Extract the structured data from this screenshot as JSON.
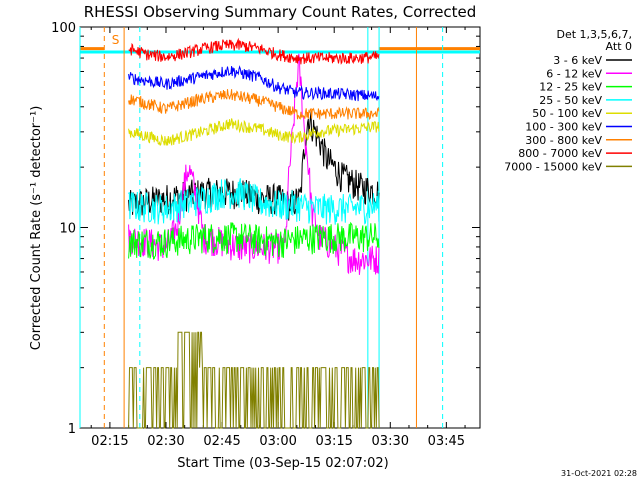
{
  "chart_data": {
    "type": "line",
    "title": "RHESSI Observing Summary Count Rates, Corrected",
    "xlabel": "Start Time (03-Sep-15 02:07:02)",
    "ylabel": "Corrected Count Rate (s⁻¹ detector⁻¹)",
    "yscale": "log",
    "ylim": [
      1,
      100
    ],
    "xlim": [
      7,
      114
    ],
    "x_ticks": [
      {
        "v": 15,
        "label": "02:15"
      },
      {
        "v": 30,
        "label": "02:30"
      },
      {
        "v": 45,
        "label": "02:45"
      },
      {
        "v": 60,
        "label": "03:00"
      },
      {
        "v": 75,
        "label": "03:15"
      },
      {
        "v": 90,
        "label": "03:30"
      },
      {
        "v": 105,
        "label": "03:45"
      }
    ],
    "y_ticks": [
      {
        "v": 1,
        "label": "1"
      },
      {
        "v": 10,
        "label": "10"
      },
      {
        "v": 100,
        "label": "100"
      }
    ],
    "legend_header": [
      "Det 1,3,5,6,7,",
      "Att 0"
    ],
    "legend_position": "right",
    "flag_label": "S",
    "footer": "31-Oct-2021 02:28",
    "series": [
      {
        "name": "3 - 6 keV",
        "color": "#000000",
        "x": [
          20,
          30,
          40,
          50,
          55,
          60,
          63,
          66,
          68,
          70,
          73,
          77,
          82,
          87
        ],
        "y": [
          13,
          14,
          15,
          15,
          14,
          14,
          13,
          14,
          35,
          30,
          22,
          18,
          16,
          15
        ]
      },
      {
        "name": "6 - 12 keV",
        "color": "#ff00ff",
        "x": [
          20,
          30,
          33,
          36,
          40,
          50,
          58,
          62,
          64,
          65.5,
          67,
          69,
          71,
          75,
          80,
          87
        ],
        "y": [
          9,
          8,
          10,
          20,
          9,
          8,
          8,
          8,
          30,
          65,
          30,
          12,
          9,
          8,
          7,
          7
        ]
      },
      {
        "name": "12 - 25 keV",
        "color": "#00ff00",
        "x": [
          20,
          30,
          40,
          50,
          60,
          70,
          80,
          87
        ],
        "y": [
          8.5,
          8.5,
          9,
          9,
          8.5,
          9,
          9,
          9
        ]
      },
      {
        "name": "25 - 50 keV",
        "color": "#00ffff",
        "x": [
          20,
          30,
          40,
          45,
          50,
          55,
          60,
          65,
          70,
          80,
          87
        ],
        "y": [
          13,
          12.5,
          14,
          15,
          15,
          13.5,
          13,
          13,
          12.5,
          12.5,
          13
        ]
      },
      {
        "name": "50 - 100 keV",
        "color": "#dddd00",
        "x": [
          20,
          30,
          40,
          47,
          55,
          60,
          65,
          70,
          80,
          87
        ],
        "y": [
          30,
          27,
          30,
          33,
          31,
          29,
          28,
          30,
          31,
          32
        ]
      },
      {
        "name": "100 - 300 keV",
        "color": "#0000ff",
        "x": [
          20,
          30,
          40,
          47,
          55,
          60,
          65,
          70,
          80,
          87
        ],
        "y": [
          56,
          52,
          57,
          61,
          56,
          50,
          47,
          47,
          46,
          45
        ]
      },
      {
        "name": "300 - 800 keV",
        "color": "#ff8000",
        "x": [
          20,
          30,
          40,
          47,
          55,
          60,
          65,
          70,
          80,
          87
        ],
        "y": [
          44,
          39,
          44,
          46,
          43,
          40,
          37,
          37,
          37,
          37
        ]
      },
      {
        "name": "800 - 7000 keV",
        "color": "#ff0000",
        "x": [
          20,
          25,
          30,
          35,
          40,
          45,
          50,
          55,
          60,
          65,
          70,
          75,
          80,
          87
        ],
        "y": [
          78,
          73,
          71,
          74,
          78,
          81,
          81,
          78,
          73,
          70,
          70,
          70,
          70,
          71
        ]
      },
      {
        "name": "7000 - 15000 keV",
        "color": "#808000",
        "x": [
          20,
          87
        ],
        "y": [
          2,
          2
        ]
      }
    ],
    "vertical_lines": [
      {
        "x": 7,
        "color": "#00ffff",
        "style": "solid"
      },
      {
        "x": 13.5,
        "color": "#ff8000",
        "style": "dashed"
      },
      {
        "x": 18.8,
        "color": "#ff8000",
        "style": "solid"
      },
      {
        "x": 23,
        "color": "#00ffff",
        "style": "dashed"
      },
      {
        "x": 84,
        "color": "#00ffff",
        "style": "solid"
      },
      {
        "x": 87,
        "color": "#00ffff",
        "style": "solid"
      },
      {
        "x": 97,
        "color": "#ff8000",
        "style": "solid"
      },
      {
        "x": 104,
        "color": "#00ffff",
        "style": "dashed"
      }
    ],
    "horizontal_lines": [
      {
        "y": 78,
        "x_range": [
          7,
          13.5
        ],
        "color": "#ff8000"
      },
      {
        "y": 78,
        "x_range": [
          87,
          114
        ],
        "color": "#ff8000"
      },
      {
        "y": 75,
        "x_range": [
          7,
          114
        ],
        "color": "#00ffff"
      }
    ]
  }
}
